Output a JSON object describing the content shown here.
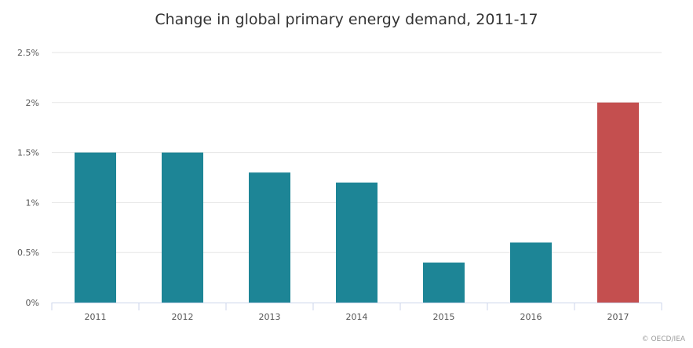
{
  "chart_data": {
    "type": "bar",
    "title": "Change in global primary energy demand, 2011-17",
    "xlabel": "",
    "ylabel": "",
    "categories": [
      "2011",
      "2012",
      "2013",
      "2014",
      "2015",
      "2016",
      "2017"
    ],
    "values": [
      1.5,
      1.5,
      1.3,
      1.2,
      0.4,
      0.6,
      2.0
    ],
    "unit": "%",
    "ylim": [
      0,
      2.5
    ],
    "y_ticks": [
      "0%",
      "0.5%",
      "1%",
      "1.5%",
      "2%",
      "2.5%"
    ],
    "y_tick_values": [
      0,
      0.5,
      1,
      1.5,
      2,
      2.5
    ],
    "grid": true,
    "colors": {
      "default_bar": "#1d8596",
      "highlight_bar": "#c44f4f",
      "grid": "#e6e6e6",
      "axis": "#ccd6eb",
      "tick_label": "#555555"
    },
    "highlight_category": "2017"
  },
  "credit": "© OECD/IEA"
}
